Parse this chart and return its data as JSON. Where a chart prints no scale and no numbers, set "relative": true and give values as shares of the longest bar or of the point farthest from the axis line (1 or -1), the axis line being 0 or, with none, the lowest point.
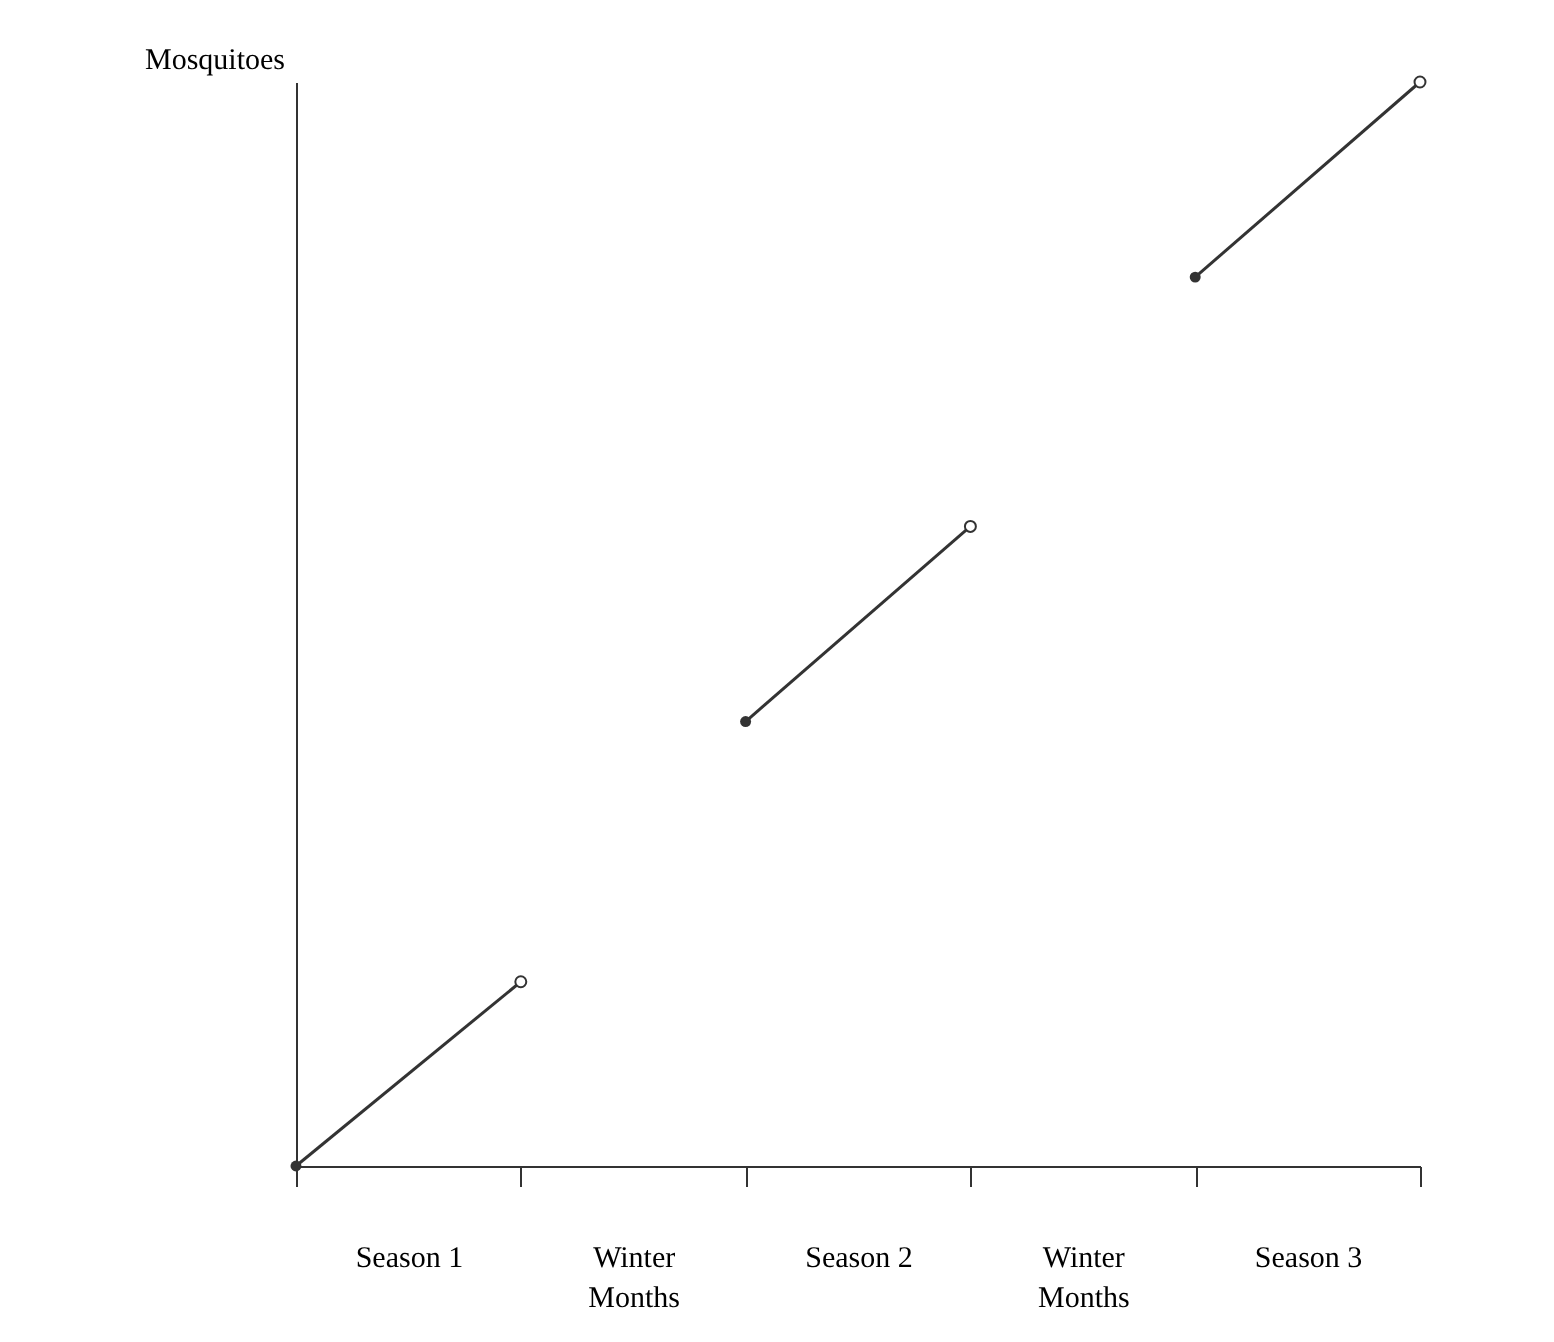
{
  "chart_data": {
    "type": "line",
    "ylabel": "Mosquitoes",
    "relative": true,
    "marker": "circle",
    "categories": [
      null,
      "Season 1",
      null,
      "Winter Months",
      null,
      "Season 2",
      null,
      "Winter Months",
      null,
      "Season 3",
      null
    ],
    "series": [
      {
        "color": "#333333",
        "values": [
          0,
          null,
          0.17,
          null,
          null,
          null,
          null,
          null,
          null,
          null,
          null
        ]
      },
      {
        "color": "#333333",
        "values": [
          null,
          null,
          null,
          null,
          0.41,
          null,
          0.59,
          null,
          null,
          null,
          null
        ]
      },
      {
        "color": "#333333",
        "values": [
          null,
          null,
          null,
          null,
          null,
          null,
          null,
          null,
          0.82,
          null,
          1
        ]
      }
    ]
  }
}
